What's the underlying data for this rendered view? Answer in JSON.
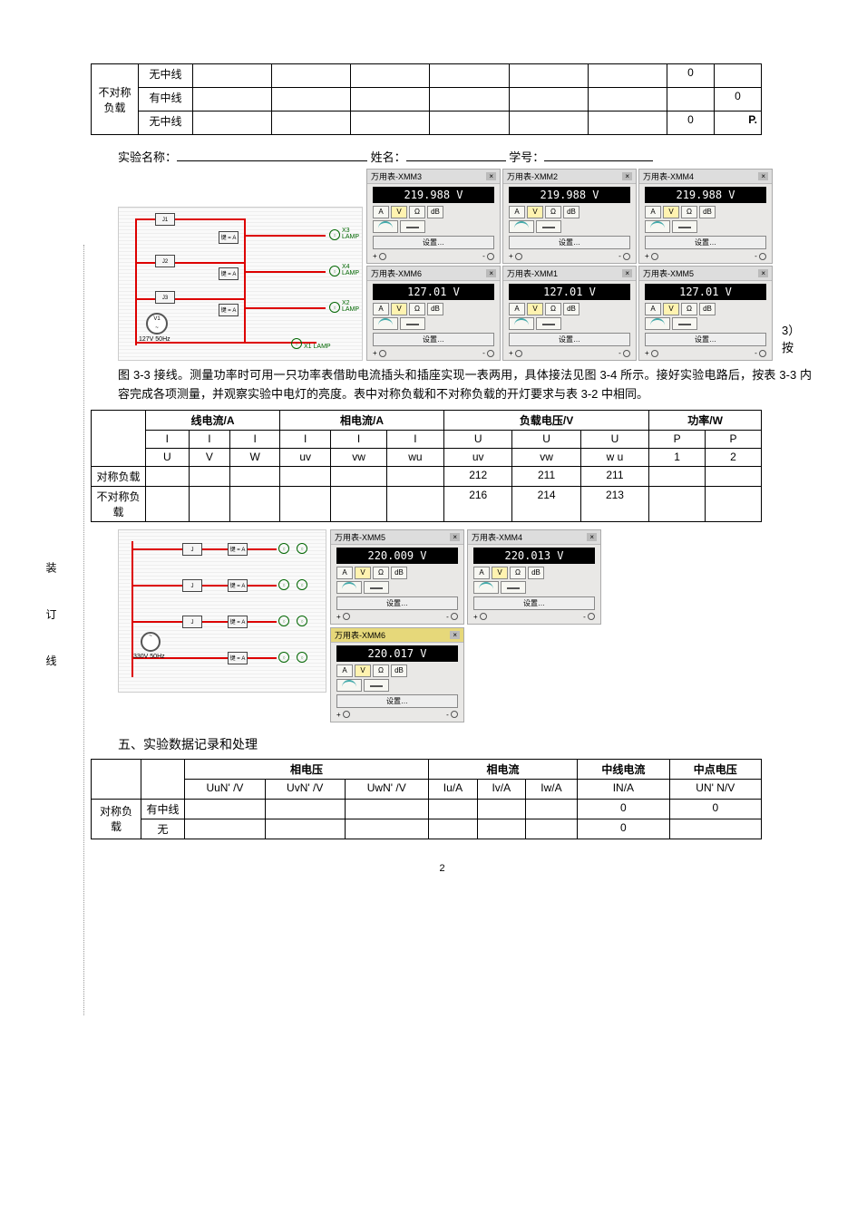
{
  "vertical_binding_text": "装 订 线",
  "table1": {
    "rows": [
      {
        "c0": "",
        "c1": "无中线",
        "c8": "0",
        "c9": ""
      },
      {
        "c0": "不对称负载",
        "c1": "有中线",
        "c8": "",
        "c9": "0"
      },
      {
        "c0": "",
        "c1": "无中线",
        "c8": "0",
        "c9": "P."
      }
    ]
  },
  "form_labels": {
    "exp_name": "实验名称：",
    "name": "姓名：",
    "id": "学号："
  },
  "meters_top": [
    {
      "title": "万用表-XMM3",
      "value": "219.988 V",
      "sel": "V"
    },
    {
      "title": "万用表-XMM2",
      "value": "219.988 V",
      "sel": "V"
    },
    {
      "title": "万用表-XMM4",
      "value": "219.988 V",
      "sel": "V"
    },
    {
      "title": "万用表-XMM6",
      "value": "127.01 V",
      "sel": "V"
    },
    {
      "title": "万用表-XMM1",
      "value": "127.01 V",
      "sel": "V"
    },
    {
      "title": "万用表-XMM5",
      "value": "127.01 V",
      "sel": "V"
    }
  ],
  "meter_btns": [
    "A",
    "V",
    "Ω",
    "dB"
  ],
  "meter_set_label": "设置…",
  "schematic1": {
    "source": "127V 50Hz",
    "lamp_labels": [
      "X3 LAMP",
      "X4 LAMP",
      "X2 LAMP",
      "X1 LAMP"
    ],
    "key_label": "键 = A"
  },
  "after_meter_text": "3）按",
  "paragraph": "图 3-3 接线。测量功率时可用一只功率表借助电流插头和插座实现一表两用，具体接法见图 3-4 所示。接好实验电路后，按表 3-3 内容完成各项测量，并观察实验中电灯的亮度。表中对称负载和不对称负载的开灯要求与表 3-2 中相同。",
  "table2": {
    "group_headers": [
      "",
      "线电流/A",
      "相电流/A",
      "负载电压/V",
      "功率/W"
    ],
    "sub1": [
      "",
      "I",
      "I",
      "I",
      "I",
      "I",
      "I",
      "U",
      "U",
      "U",
      "P",
      "P"
    ],
    "sub2": [
      "",
      "U",
      "V",
      "W",
      "uv",
      "vw",
      "wu",
      "uv",
      "vw",
      "w u",
      "1",
      "2"
    ],
    "rows": [
      {
        "label": "对称负载",
        "cells": [
          "",
          "",
          "",
          "",
          "",
          "",
          "212",
          "211",
          "211",
          "",
          ""
        ]
      },
      {
        "label": "不对称负载",
        "cells": [
          "",
          "",
          "",
          "",
          "",
          "",
          "216",
          "214",
          "213",
          "",
          ""
        ]
      }
    ]
  },
  "meters_mid": [
    {
      "title": "万用表-XMM5",
      "value": "220.009 V"
    },
    {
      "title": "万用表-XMM4",
      "value": "220.013 V"
    },
    {
      "title": "万用表-XMM6",
      "value": "220.017 V",
      "yellow": true
    }
  ],
  "schematic2_source": "330V 50Hz",
  "section5": "五、实验数据记录和处理",
  "table3": {
    "group_headers": [
      "",
      "",
      "相电压",
      "相电流",
      "中线电流",
      "中点电压"
    ],
    "sub1": [
      "",
      "",
      "UuN' /V",
      "UvN' /V",
      "UwN' /V",
      "Iu/A",
      "Iv/A",
      "Iw/A",
      "IN/A",
      "UN' N/V"
    ],
    "rows": [
      {
        "l1": "对称负载",
        "l2": "有中线",
        "cells": [
          "",
          "",
          "",
          "",
          "",
          "",
          "0",
          "0"
        ]
      },
      {
        "l1": "",
        "l2": "无",
        "cells": [
          "",
          "",
          "",
          "",
          "",
          "",
          "0",
          ""
        ]
      }
    ]
  },
  "page_number": "2",
  "colors": {
    "wire": "#d00",
    "lcd_bg": "#000000",
    "lcd_fg": "#ffffff",
    "panel_bg": "#e9e8e6",
    "btn_sel": "#fff3b0"
  }
}
